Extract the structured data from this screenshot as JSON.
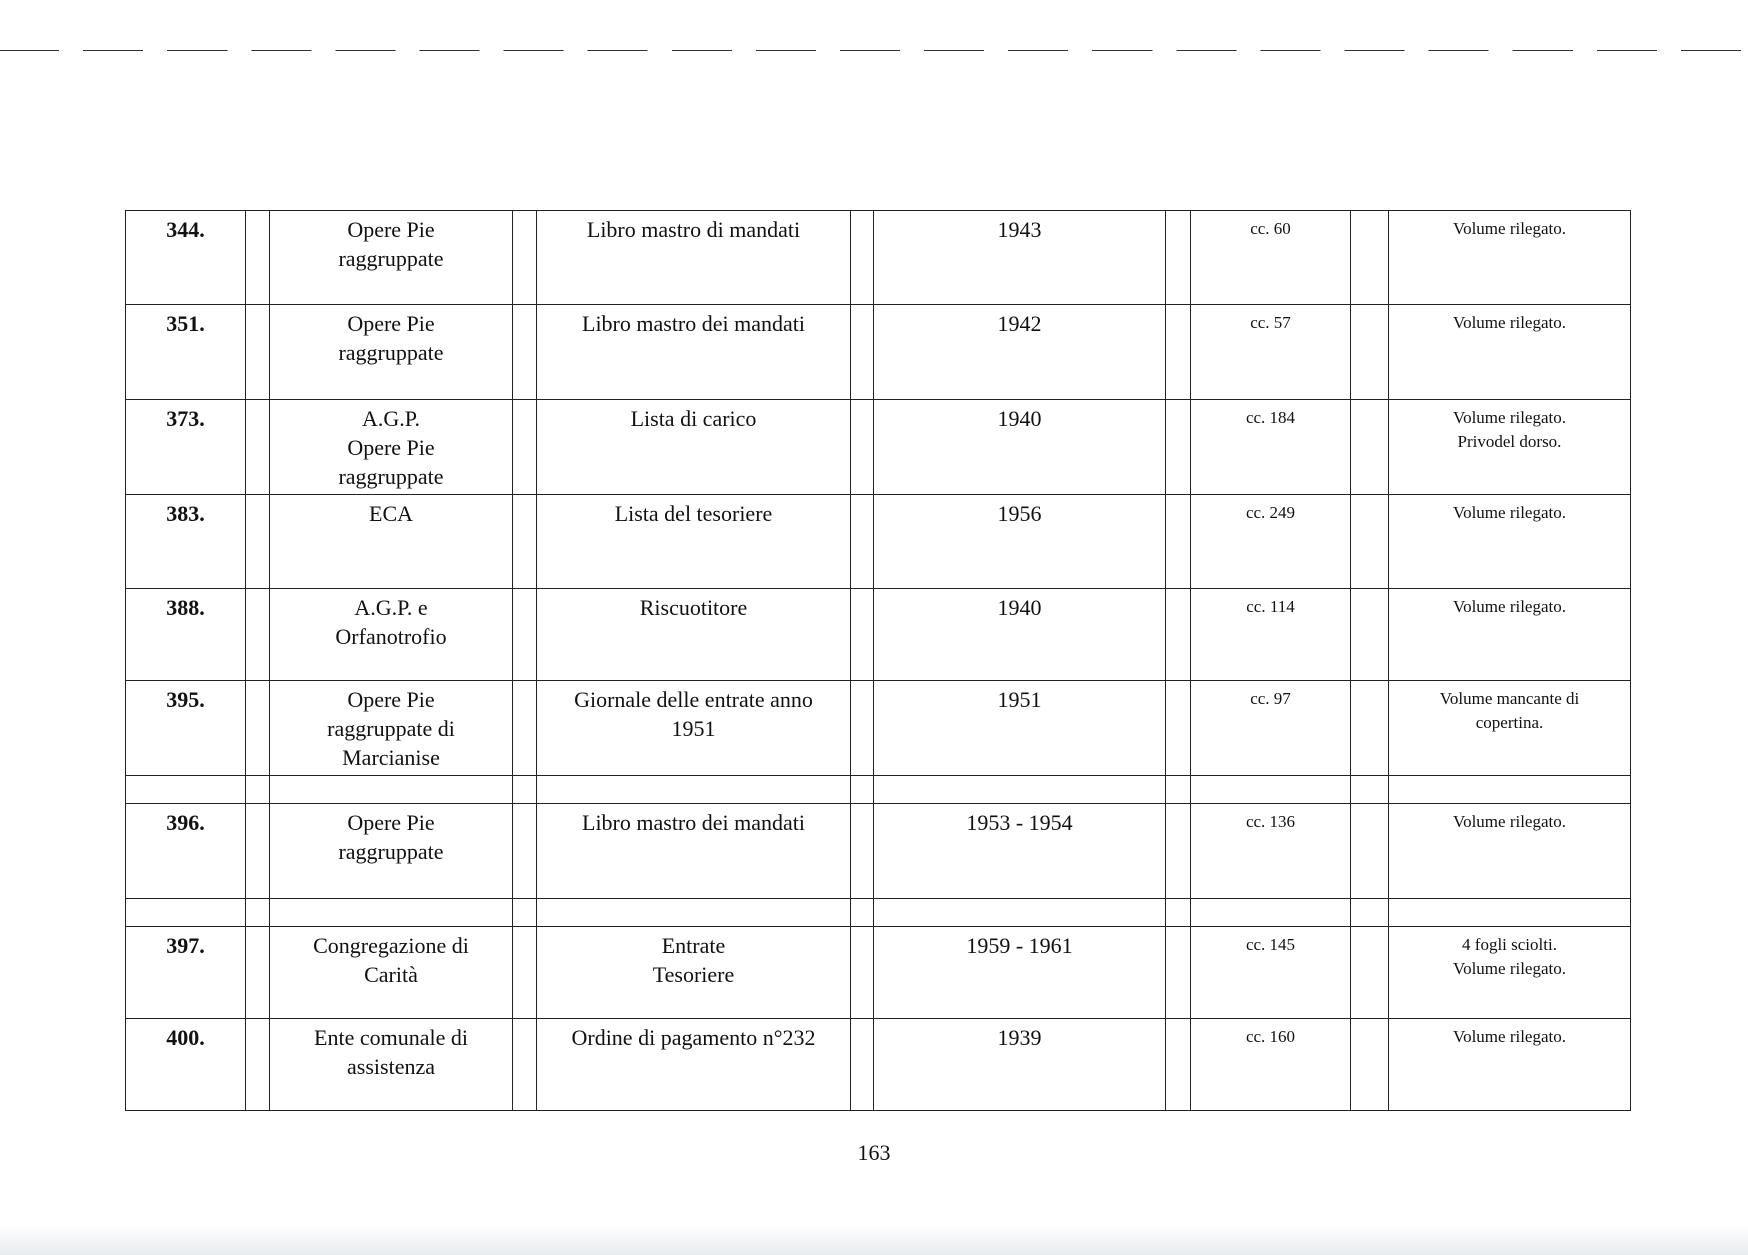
{
  "rows": [
    {
      "num": "344.",
      "ente": [
        "Opere Pie",
        "raggruppate"
      ],
      "titolo": [
        "Libro mastro di mandati"
      ],
      "anni": "1943",
      "cc": "cc. 60",
      "note": [
        "Volume rilegato."
      ]
    },
    {
      "num": "351.",
      "ente": [
        "Opere Pie",
        "raggruppate"
      ],
      "titolo": [
        "Libro mastro dei mandati"
      ],
      "anni": "1942",
      "cc": "cc. 57",
      "note": [
        "Volume rilegato."
      ]
    },
    {
      "num": "373.",
      "ente": [
        "A.G.P.",
        "Opere Pie",
        "raggruppate"
      ],
      "titolo": [
        "Lista di carico"
      ],
      "anni": "1940",
      "cc": "cc. 184",
      "note": [
        "Volume rilegato.",
        "Privodel dorso."
      ]
    },
    {
      "num": "383.",
      "ente": [
        "ECA"
      ],
      "titolo": [
        "Lista del tesoriere"
      ],
      "anni": "1956",
      "cc": "cc. 249",
      "note": [
        "Volume rilegato."
      ]
    },
    {
      "num": "388.",
      "ente": [
        "A.G.P. e",
        "Orfanotrofio"
      ],
      "titolo": [
        "Riscuotitore"
      ],
      "anni": "1940",
      "cc": "cc. 114",
      "note": [
        "Volume rilegato."
      ]
    },
    {
      "num": "395.",
      "ente": [
        "Opere Pie",
        "raggruppate di",
        "Marcianise"
      ],
      "titolo": [
        "Giornale delle entrate anno",
        "1951"
      ],
      "anni": "1951",
      "cc": "cc. 97",
      "note": [
        "Volume mancante di",
        "copertina."
      ]
    },
    {
      "num": "396.",
      "ente": [
        "Opere Pie",
        "raggruppate"
      ],
      "titolo": [
        "Libro mastro dei mandati"
      ],
      "anni": "1953 - 1954",
      "cc": "cc. 136",
      "note": [
        "Volume rilegato."
      ]
    },
    {
      "num": "397.",
      "ente": [
        "Congregazione di",
        "Carità"
      ],
      "titolo": [
        "Entrate",
        "Tesoriere"
      ],
      "anni": "1959 - 1961",
      "cc": "cc. 145",
      "note": [
        "4 fogli sciolti.",
        "Volume rilegato."
      ]
    },
    {
      "num": "400.",
      "ente": [
        "Ente comunale di",
        "assistenza"
      ],
      "titolo": [
        "Ordine di pagamento n°232"
      ],
      "anni": "1939",
      "cc": "cc. 160",
      "note": [
        "Volume rilegato."
      ]
    }
  ],
  "page_number": "163"
}
